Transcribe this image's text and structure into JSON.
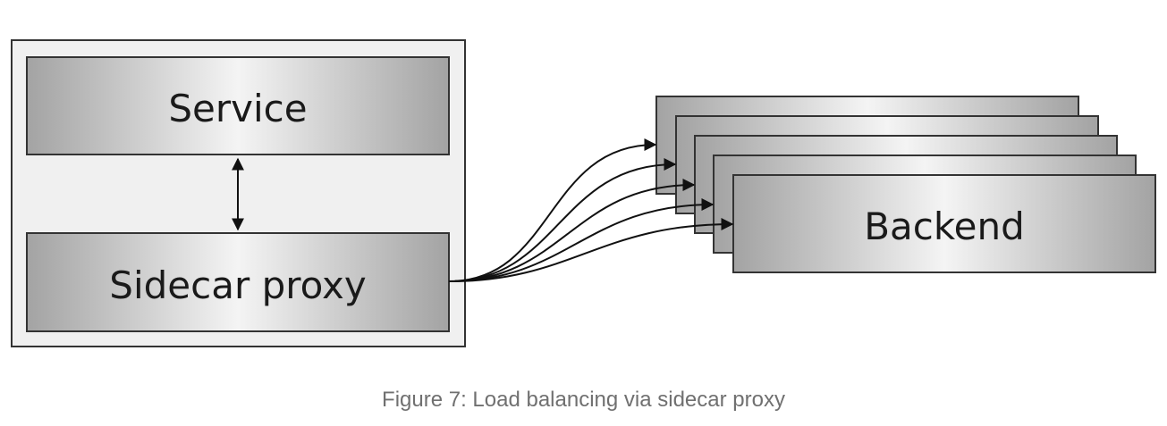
{
  "diagram": {
    "service_label": "Service",
    "proxy_label": "Sidecar proxy",
    "backend_label": "Backend",
    "backend_count": 5,
    "connection_count": 5
  },
  "caption": "Figure 7: Load balancing via sidecar proxy"
}
